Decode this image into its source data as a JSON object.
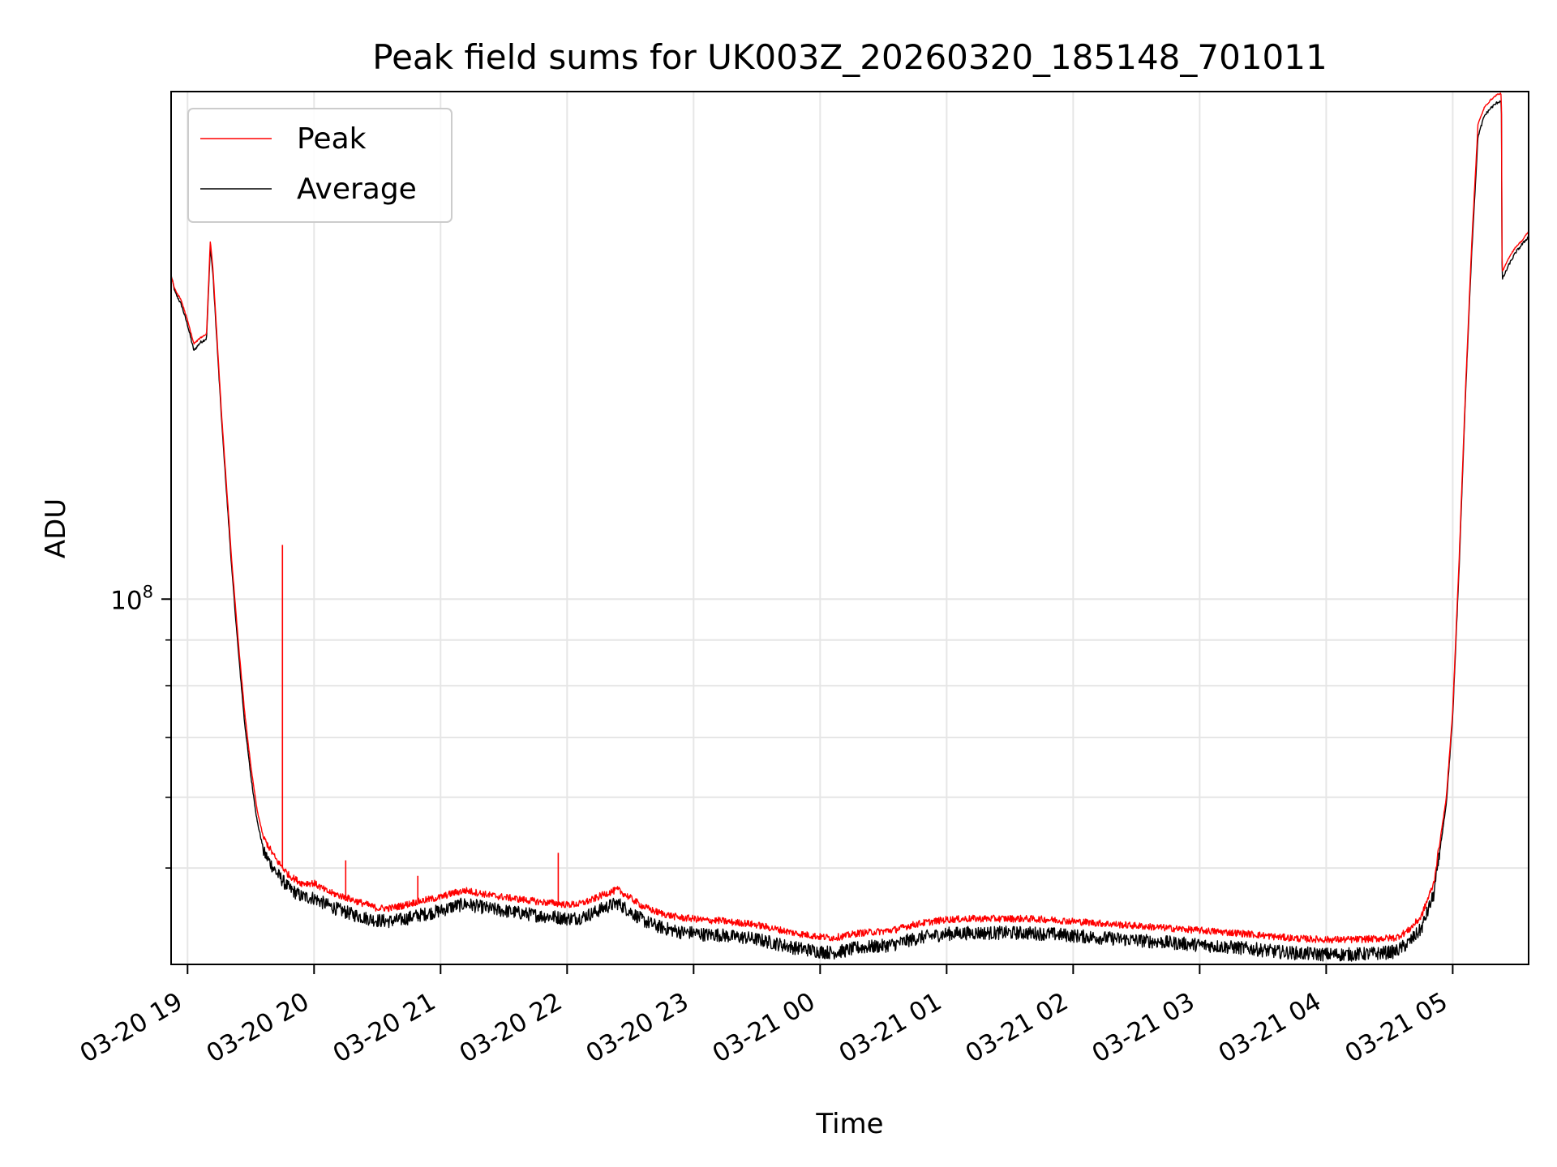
{
  "chart_data": {
    "type": "line",
    "title": "Peak field sums for UK003Z_20260320_185148_701011",
    "xlabel": "Time",
    "ylabel": "ADU",
    "yscale": "log",
    "xlim_hours": [
      18.87,
      29.6
    ],
    "ylim": [
      39000000,
      370000000
    ],
    "x_ticks": [
      {
        "label": "03-20 19",
        "hour": 19
      },
      {
        "label": "03-20 20",
        "hour": 20
      },
      {
        "label": "03-20 21",
        "hour": 21
      },
      {
        "label": "03-20 22",
        "hour": 22
      },
      {
        "label": "03-20 23",
        "hour": 23
      },
      {
        "label": "03-21 00",
        "hour": 24
      },
      {
        "label": "03-21 01",
        "hour": 25
      },
      {
        "label": "03-21 02",
        "hour": 26
      },
      {
        "label": "03-21 03",
        "hour": 27
      },
      {
        "label": "03-21 04",
        "hour": 28
      },
      {
        "label": "03-21 05",
        "hour": 29
      }
    ],
    "y_major_ticks": [
      {
        "value": 100000000,
        "base": "10",
        "exp": "8"
      }
    ],
    "y_minor_ticks": [
      50000000,
      60000000,
      70000000,
      80000000,
      90000000
    ],
    "grid": true,
    "legend_position": "top-left",
    "colors": {
      "peak": "#ff0000",
      "average": "#000000",
      "grid": "#e6e6e6"
    },
    "series": [
      {
        "name": "Peak",
        "color": "#ff0000",
        "points": [
          [
            18.87,
            230000000
          ],
          [
            18.9,
            222000000
          ],
          [
            18.95,
            216000000
          ],
          [
            19.0,
            205000000
          ],
          [
            19.05,
            193000000
          ],
          [
            19.1,
            196000000
          ],
          [
            19.15,
            198000000
          ],
          [
            19.18,
            252000000
          ],
          [
            19.2,
            235000000
          ],
          [
            19.27,
            160000000
          ],
          [
            19.35,
            110000000
          ],
          [
            19.4,
            90000000
          ],
          [
            19.45,
            75000000
          ],
          [
            19.5,
            65000000
          ],
          [
            19.55,
            58000000
          ],
          [
            19.6,
            54000000
          ],
          [
            19.7,
            51000000
          ],
          [
            19.8,
            49000000
          ],
          [
            19.9,
            48000000
          ],
          [
            20.0,
            48000000
          ],
          [
            20.1,
            47000000
          ],
          [
            20.2,
            46500000
          ],
          [
            20.3,
            46000000
          ],
          [
            20.4,
            45500000
          ],
          [
            20.5,
            45000000
          ],
          [
            20.6,
            45000000
          ],
          [
            20.7,
            45300000
          ],
          [
            20.8,
            45700000
          ],
          [
            20.9,
            46000000
          ],
          [
            21.0,
            46300000
          ],
          [
            21.1,
            46800000
          ],
          [
            21.2,
            47100000
          ],
          [
            21.3,
            46800000
          ],
          [
            21.4,
            46500000
          ],
          [
            21.5,
            46300000
          ],
          [
            21.6,
            46100000
          ],
          [
            21.7,
            45900000
          ],
          [
            21.8,
            45700000
          ],
          [
            21.9,
            45600000
          ],
          [
            22.0,
            45400000
          ],
          [
            22.1,
            45500000
          ],
          [
            22.2,
            46000000
          ],
          [
            22.3,
            46700000
          ],
          [
            22.4,
            47200000
          ],
          [
            22.5,
            46200000
          ],
          [
            22.6,
            45200000
          ],
          [
            22.7,
            44600000
          ],
          [
            22.8,
            44200000
          ],
          [
            22.9,
            43900000
          ],
          [
            23.0,
            43800000
          ],
          [
            23.1,
            43600000
          ],
          [
            23.2,
            43600000
          ],
          [
            23.3,
            43400000
          ],
          [
            23.4,
            43300000
          ],
          [
            23.5,
            43100000
          ],
          [
            23.6,
            42800000
          ],
          [
            23.7,
            42500000
          ],
          [
            23.8,
            42200000
          ],
          [
            23.9,
            42000000
          ],
          [
            24.0,
            41800000
          ],
          [
            24.1,
            41700000
          ],
          [
            24.2,
            41900000
          ],
          [
            24.3,
            42200000
          ],
          [
            24.4,
            42300000
          ],
          [
            24.5,
            42400000
          ],
          [
            24.6,
            42600000
          ],
          [
            24.7,
            43000000
          ],
          [
            24.8,
            43300000
          ],
          [
            24.9,
            43500000
          ],
          [
            25.0,
            43700000
          ],
          [
            25.2,
            43800000
          ],
          [
            25.4,
            43800000
          ],
          [
            25.6,
            43800000
          ],
          [
            25.8,
            43700000
          ],
          [
            26.0,
            43500000
          ],
          [
            26.2,
            43300000
          ],
          [
            26.4,
            43100000
          ],
          [
            26.6,
            42900000
          ],
          [
            26.8,
            42700000
          ],
          [
            27.0,
            42500000
          ],
          [
            27.2,
            42300000
          ],
          [
            27.4,
            42100000
          ],
          [
            27.6,
            41800000
          ],
          [
            27.8,
            41600000
          ],
          [
            28.0,
            41500000
          ],
          [
            28.2,
            41500000
          ],
          [
            28.4,
            41600000
          ],
          [
            28.55,
            41700000
          ],
          [
            28.65,
            42500000
          ],
          [
            28.75,
            44000000
          ],
          [
            28.85,
            48000000
          ],
          [
            28.95,
            60000000
          ],
          [
            29.0,
            75000000
          ],
          [
            29.05,
            110000000
          ],
          [
            29.1,
            170000000
          ],
          [
            29.15,
            250000000
          ],
          [
            29.2,
            340000000
          ],
          [
            29.25,
            355000000
          ],
          [
            29.3,
            362000000
          ],
          [
            29.35,
            367000000
          ],
          [
            29.385,
            368000000
          ],
          [
            29.39,
            232000000
          ],
          [
            29.45,
            242000000
          ],
          [
            29.5,
            248000000
          ],
          [
            29.55,
            252000000
          ],
          [
            29.6,
            258000000
          ]
        ],
        "spikes": [
          [
            19.75,
            115000000
          ],
          [
            20.25,
            51000000
          ],
          [
            21.93,
            52000000
          ],
          [
            20.82,
            49000000
          ]
        ]
      },
      {
        "name": "Average",
        "color": "#000000",
        "points": [
          [
            18.87,
            231000000
          ],
          [
            18.9,
            221000000
          ],
          [
            18.95,
            214000000
          ],
          [
            19.0,
            203000000
          ],
          [
            19.05,
            190000000
          ],
          [
            19.1,
            194000000
          ],
          [
            19.15,
            196000000
          ],
          [
            19.18,
            248000000
          ],
          [
            19.2,
            232000000
          ],
          [
            19.27,
            158000000
          ],
          [
            19.35,
            108000000
          ],
          [
            19.4,
            88000000
          ],
          [
            19.45,
            73000000
          ],
          [
            19.5,
            63500000
          ],
          [
            19.55,
            56500000
          ],
          [
            19.6,
            52500000
          ],
          [
            19.7,
            49800000
          ],
          [
            19.8,
            47800000
          ],
          [
            19.9,
            46800000
          ],
          [
            20.0,
            46600000
          ],
          [
            20.1,
            45800000
          ],
          [
            20.2,
            45200000
          ],
          [
            20.3,
            44700000
          ],
          [
            20.4,
            44300000
          ],
          [
            20.5,
            44000000
          ],
          [
            20.6,
            43900000
          ],
          [
            20.7,
            44100000
          ],
          [
            20.8,
            44500000
          ],
          [
            20.9,
            44800000
          ],
          [
            21.0,
            45100000
          ],
          [
            21.1,
            45600000
          ],
          [
            21.2,
            45900000
          ],
          [
            21.3,
            45600000
          ],
          [
            21.4,
            45300000
          ],
          [
            21.5,
            45100000
          ],
          [
            21.6,
            44900000
          ],
          [
            21.7,
            44700000
          ],
          [
            21.8,
            44500000
          ],
          [
            21.9,
            44400000
          ],
          [
            22.0,
            44200000
          ],
          [
            22.1,
            44300000
          ],
          [
            22.2,
            44800000
          ],
          [
            22.3,
            45500000
          ],
          [
            22.4,
            46000000
          ],
          [
            22.5,
            45000000
          ],
          [
            22.6,
            44000000
          ],
          [
            22.7,
            43400000
          ],
          [
            22.8,
            43000000
          ],
          [
            22.9,
            42700000
          ],
          [
            23.0,
            42600000
          ],
          [
            23.1,
            42400000
          ],
          [
            23.2,
            42400000
          ],
          [
            23.3,
            42200000
          ],
          [
            23.4,
            42100000
          ],
          [
            23.5,
            41900000
          ],
          [
            23.6,
            41600000
          ],
          [
            23.7,
            41300000
          ],
          [
            23.8,
            41000000
          ],
          [
            23.9,
            40800000
          ],
          [
            24.0,
            40600000
          ],
          [
            24.1,
            40500000
          ],
          [
            24.2,
            40700000
          ],
          [
            24.3,
            41000000
          ],
          [
            24.4,
            41100000
          ],
          [
            24.5,
            41200000
          ],
          [
            24.6,
            41400000
          ],
          [
            24.7,
            41800000
          ],
          [
            24.8,
            42100000
          ],
          [
            24.9,
            42300000
          ],
          [
            25.0,
            42500000
          ],
          [
            25.2,
            42600000
          ],
          [
            25.4,
            42600000
          ],
          [
            25.6,
            42600000
          ],
          [
            25.8,
            42500000
          ],
          [
            26.0,
            42300000
          ],
          [
            26.2,
            42100000
          ],
          [
            26.4,
            41900000
          ],
          [
            26.6,
            41700000
          ],
          [
            26.8,
            41500000
          ],
          [
            27.0,
            41300000
          ],
          [
            27.2,
            41100000
          ],
          [
            27.4,
            40900000
          ],
          [
            27.6,
            40600000
          ],
          [
            27.8,
            40400000
          ],
          [
            28.0,
            40300000
          ],
          [
            28.2,
            40300000
          ],
          [
            28.4,
            40400000
          ],
          [
            28.55,
            40600000
          ],
          [
            28.65,
            41500000
          ],
          [
            28.75,
            43000000
          ],
          [
            28.85,
            47000000
          ],
          [
            28.95,
            59000000
          ],
          [
            29.0,
            74000000
          ],
          [
            29.05,
            108000000
          ],
          [
            29.1,
            168000000
          ],
          [
            29.15,
            245000000
          ],
          [
            29.2,
            330000000
          ],
          [
            29.25,
            348000000
          ],
          [
            29.3,
            355000000
          ],
          [
            29.35,
            360000000
          ],
          [
            29.385,
            362000000
          ],
          [
            29.39,
            228000000
          ],
          [
            29.45,
            238000000
          ],
          [
            29.5,
            245000000
          ],
          [
            29.55,
            250000000
          ],
          [
            29.6,
            255000000
          ]
        ],
        "spikes": []
      }
    ]
  }
}
